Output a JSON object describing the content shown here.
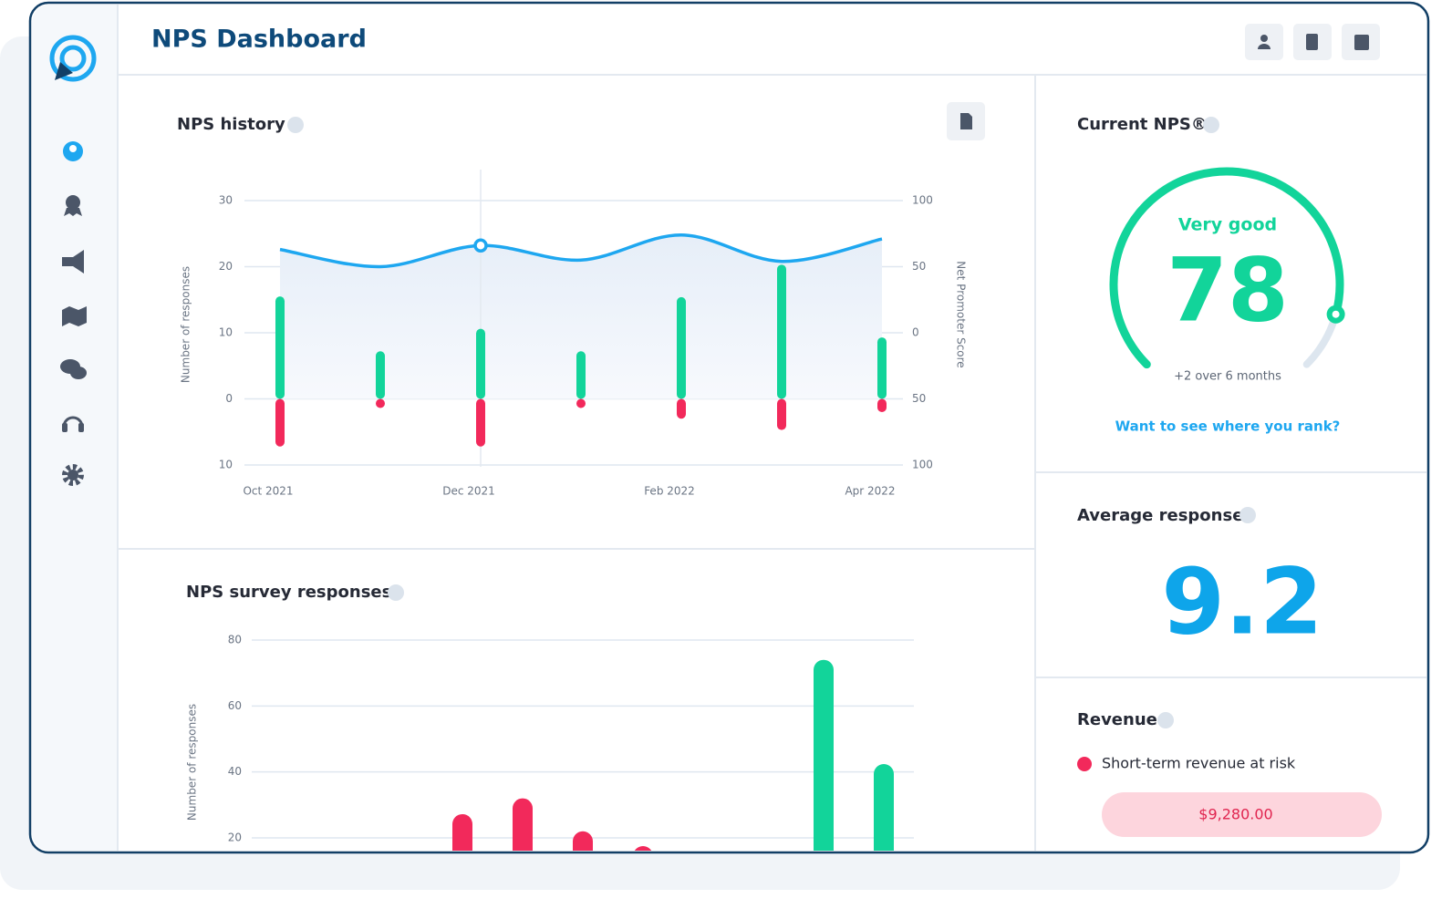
{
  "header": {
    "title": "NPS Dashboard"
  },
  "chart_data": [
    {
      "type": "history",
      "title": "NPS history",
      "y_label": "Number of responses",
      "y2_label": "Net Promoter Score",
      "categories": [
        "Oct 2021",
        null,
        "Dec 2021",
        null,
        "Feb 2022",
        null,
        "Apr 2022"
      ],
      "series": [
        {
          "color": "#12d49a",
          "values": [
            15.5,
            7.2,
            10.6,
            7.2,
            15.4,
            20.3,
            9.3
          ]
        },
        {
          "color": "#f2295b",
          "values": [
            -7.2,
            -0.7,
            -7.2,
            -0.7,
            -3,
            -4.7,
            -2
          ]
        },
        {
          "color": "#1ea7f0",
          "axis": "y2",
          "values": [
            63,
            50,
            66,
            55,
            74,
            54,
            71
          ]
        }
      ],
      "ylim": [
        -10,
        30
      ],
      "yticks": [
        {
          "value": -10,
          "label": "10"
        },
        0,
        10,
        20,
        30
      ],
      "y2lim": [
        -100,
        100
      ],
      "y2ticks": [
        {
          "value": -100,
          "label": "100"
        },
        {
          "value": -50,
          "label": "50"
        },
        0,
        50,
        100
      ],
      "grid": true
    },
    {
      "type": "bar",
      "title": "NPS survey responses",
      "y_label": "Number of responses",
      "categories": [
        null,
        null,
        null,
        null,
        null,
        null,
        null,
        null,
        null,
        null,
        null
      ],
      "values": [
        null,
        null,
        null,
        27.2,
        32,
        22,
        17.5,
        null,
        null,
        74,
        42.4
      ],
      "colors": [
        "#f2295b",
        "#f2295b",
        "#f2295b",
        "#f2295b",
        "#f2295b",
        "#f2295b",
        "#f2295b",
        "#c9d3dd",
        "#c9d3dd",
        "#12d49a",
        "#12d49a"
      ],
      "ylim": [
        0,
        80
      ],
      "yticks": [
        20,
        40,
        60,
        80
      ],
      "grid": true
    },
    {
      "type": "gauge",
      "title": "Current NPS®",
      "value": 78,
      "rating": "Very good",
      "note": "+2 over 6 months",
      "link": "Want to see where you rank?",
      "ylim": [
        -100,
        100
      ],
      "color": "#12d49a"
    }
  ],
  "average_response": {
    "title": "Average response",
    "value": 9.2
  },
  "revenue": {
    "title": "Revenue",
    "legend": "Short-term revenue at risk",
    "amount": "$9,280.00"
  }
}
